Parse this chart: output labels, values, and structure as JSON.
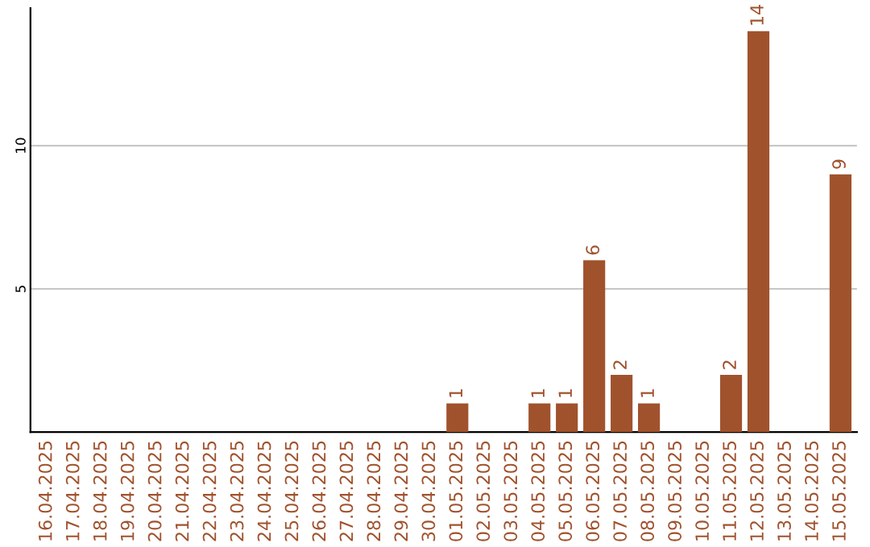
{
  "chart_data": {
    "type": "bar",
    "categories": [
      "16.04.2025",
      "17.04.2025",
      "18.04.2025",
      "19.04.2025",
      "20.04.2025",
      "21.04.2025",
      "22.04.2025",
      "23.04.2025",
      "24.04.2025",
      "25.04.2025",
      "26.04.2025",
      "27.04.2025",
      "28.04.2025",
      "29.04.2025",
      "30.04.2025",
      "01.05.2025",
      "02.05.2025",
      "03.05.2025",
      "04.05.2025",
      "05.05.2025",
      "06.05.2025",
      "07.05.2025",
      "08.05.2025",
      "09.05.2025",
      "10.05.2025",
      "11.05.2025",
      "12.05.2025",
      "13.05.2025",
      "14.05.2025",
      "15.05.2025"
    ],
    "values": [
      0,
      0,
      0,
      0,
      0,
      0,
      0,
      0,
      0,
      0,
      0,
      0,
      0,
      0,
      0,
      1,
      0,
      0,
      1,
      1,
      6,
      2,
      1,
      0,
      0,
      2,
      14,
      0,
      0,
      9
    ],
    "value_labels": [
      null,
      null,
      null,
      null,
      null,
      null,
      null,
      null,
      null,
      null,
      null,
      null,
      null,
      null,
      null,
      "1",
      null,
      null,
      "1",
      "1",
      "6",
      "2",
      "1",
      null,
      null,
      "2",
      "14",
      null,
      null,
      "9"
    ],
    "color": "#a0522d",
    "ylim": [
      0,
      14.8
    ],
    "yticks": [
      5,
      10
    ],
    "grid": "y"
  }
}
